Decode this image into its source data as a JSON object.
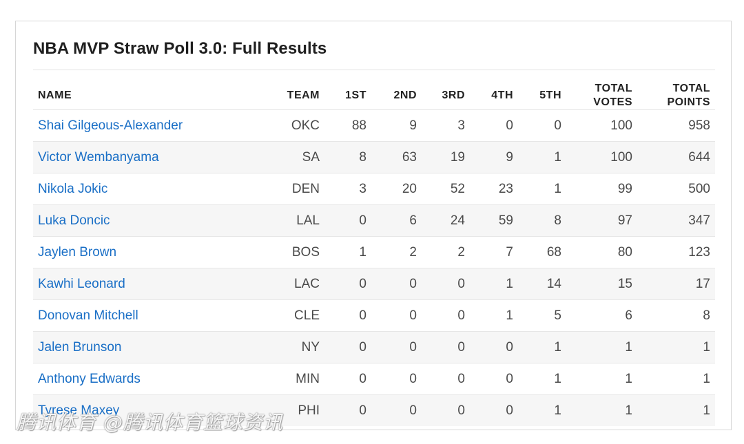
{
  "title": "NBA MVP Straw Poll 3.0: Full Results",
  "columns": {
    "name": "NAME",
    "team": "TEAM",
    "first": "1ST",
    "second": "2ND",
    "third": "3RD",
    "fourth": "4TH",
    "fifth": "5TH",
    "total_votes_line1": "TOTAL",
    "total_votes_line2": "VOTES",
    "total_points_line1": "TOTAL",
    "total_points_line2": "POINTS"
  },
  "rows": [
    {
      "name": "Shai Gilgeous-Alexander",
      "team": "OKC",
      "first": "88",
      "second": "9",
      "third": "3",
      "fourth": "0",
      "fifth": "0",
      "total_votes": "100",
      "total_points": "958"
    },
    {
      "name": "Victor Wembanyama",
      "team": "SA",
      "first": "8",
      "second": "63",
      "third": "19",
      "fourth": "9",
      "fifth": "1",
      "total_votes": "100",
      "total_points": "644"
    },
    {
      "name": "Nikola Jokic",
      "team": "DEN",
      "first": "3",
      "second": "20",
      "third": "52",
      "fourth": "23",
      "fifth": "1",
      "total_votes": "99",
      "total_points": "500"
    },
    {
      "name": "Luka Doncic",
      "team": "LAL",
      "first": "0",
      "second": "6",
      "third": "24",
      "fourth": "59",
      "fifth": "8",
      "total_votes": "97",
      "total_points": "347"
    },
    {
      "name": "Jaylen Brown",
      "team": "BOS",
      "first": "1",
      "second": "2",
      "third": "2",
      "fourth": "7",
      "fifth": "68",
      "total_votes": "80",
      "total_points": "123"
    },
    {
      "name": "Kawhi Leonard",
      "team": "LAC",
      "first": "0",
      "second": "0",
      "third": "0",
      "fourth": "1",
      "fifth": "14",
      "total_votes": "15",
      "total_points": "17"
    },
    {
      "name": "Donovan Mitchell",
      "team": "CLE",
      "first": "0",
      "second": "0",
      "third": "0",
      "fourth": "1",
      "fifth": "5",
      "total_votes": "6",
      "total_points": "8"
    },
    {
      "name": "Jalen Brunson",
      "team": "NY",
      "first": "0",
      "second": "0",
      "third": "0",
      "fourth": "0",
      "fifth": "1",
      "total_votes": "1",
      "total_points": "1"
    },
    {
      "name": "Anthony Edwards",
      "team": "MIN",
      "first": "0",
      "second": "0",
      "third": "0",
      "fourth": "0",
      "fifth": "1",
      "total_votes": "1",
      "total_points": "1"
    },
    {
      "name": "Tyrese Maxey",
      "team": "PHI",
      "first": "0",
      "second": "0",
      "third": "0",
      "fourth": "0",
      "fifth": "1",
      "total_votes": "1",
      "total_points": "1"
    }
  ],
  "watermark": "腾讯体育 @腾讯体育篮球资讯",
  "colors": {
    "link": "#1a6fc6",
    "stripe": "#f6f6f6",
    "text": "#4a4a4a"
  }
}
